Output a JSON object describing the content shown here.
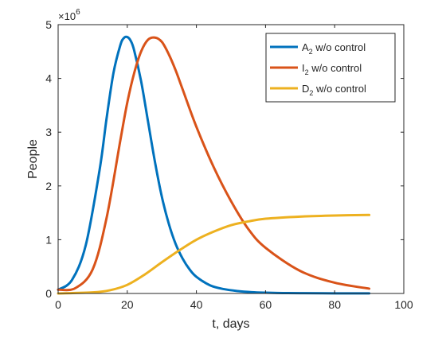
{
  "chart_data": {
    "type": "line",
    "title": "",
    "xlabel": "t, days",
    "ylabel": "People",
    "xlim": [
      0,
      100
    ],
    "ylim": [
      0,
      5
    ],
    "x_ticks": [
      0,
      20,
      40,
      60,
      80,
      100
    ],
    "y_ticks": [
      0,
      1,
      2,
      3,
      4,
      5
    ],
    "y_exponent": {
      "base": "×10",
      "power": "6"
    },
    "grid": false,
    "legend_position": "top-right",
    "series": [
      {
        "name": "A",
        "name_sub": "2",
        "name_suffix": " w/o control",
        "color": "#0072BD",
        "x": [
          0,
          4,
          8,
          12,
          14,
          16,
          18,
          19,
          20,
          21,
          22,
          24,
          26,
          28,
          30,
          32,
          34,
          36,
          38,
          40,
          44,
          48,
          52,
          56,
          60,
          65,
          70,
          80,
          90
        ],
        "y": [
          0.07,
          0.25,
          0.9,
          2.3,
          3.25,
          4.1,
          4.62,
          4.75,
          4.77,
          4.7,
          4.52,
          3.95,
          3.2,
          2.45,
          1.8,
          1.3,
          0.92,
          0.65,
          0.45,
          0.31,
          0.15,
          0.08,
          0.045,
          0.025,
          0.015,
          0.008,
          0.005,
          0.002,
          0.001
        ]
      },
      {
        "name": "I",
        "name_sub": "2",
        "name_suffix": " w/o control",
        "color": "#D95319",
        "x": [
          0,
          5,
          10,
          14,
          18,
          20,
          22,
          24,
          26,
          28,
          30,
          32,
          34,
          36,
          40,
          45,
          50,
          55,
          60,
          70,
          80,
          90
        ],
        "y": [
          0.07,
          0.1,
          0.45,
          1.4,
          2.85,
          3.55,
          4.1,
          4.5,
          4.72,
          4.76,
          4.68,
          4.45,
          4.15,
          3.8,
          3.1,
          2.35,
          1.72,
          1.2,
          0.85,
          0.42,
          0.2,
          0.09
        ]
      },
      {
        "name": "D",
        "name_sub": "2",
        "name_suffix": " w/o control",
        "color": "#EDB120",
        "x": [
          0,
          10,
          15,
          20,
          25,
          30,
          35,
          40,
          45,
          50,
          55,
          60,
          70,
          80,
          90
        ],
        "y": [
          0.0,
          0.02,
          0.06,
          0.16,
          0.35,
          0.58,
          0.8,
          1.0,
          1.15,
          1.27,
          1.34,
          1.39,
          1.43,
          1.45,
          1.46
        ]
      }
    ]
  }
}
